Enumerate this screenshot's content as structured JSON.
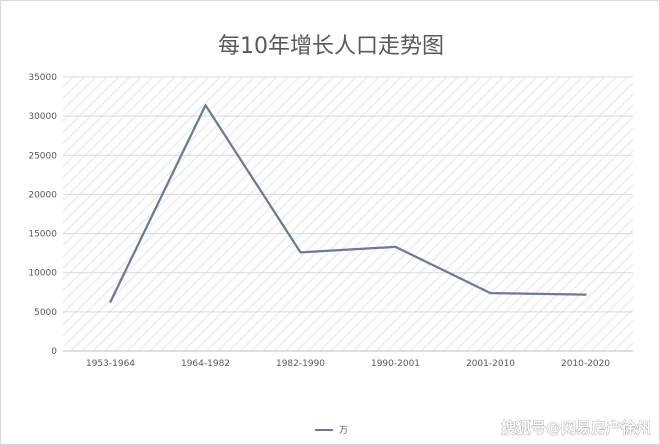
{
  "chart_data": {
    "type": "line",
    "title": "每10年增长人口走势图",
    "categories": [
      "1953-1964",
      "1964-1982",
      "1982-1990",
      "1990-2001",
      "2001-2010",
      "2010-2020"
    ],
    "series": [
      {
        "name": "万",
        "values": [
          6300,
          31400,
          12600,
          13300,
          7400,
          7200
        ],
        "color": "#6b7a99"
      }
    ],
    "y_ticks": [
      0,
      5000,
      10000,
      15000,
      20000,
      25000,
      30000,
      35000
    ],
    "ylim": [
      0,
      35000
    ],
    "grid": true,
    "legend_position": "bottom",
    "xlabel": "",
    "ylabel": ""
  },
  "watermark": "搜狐号@网易房产徐州"
}
